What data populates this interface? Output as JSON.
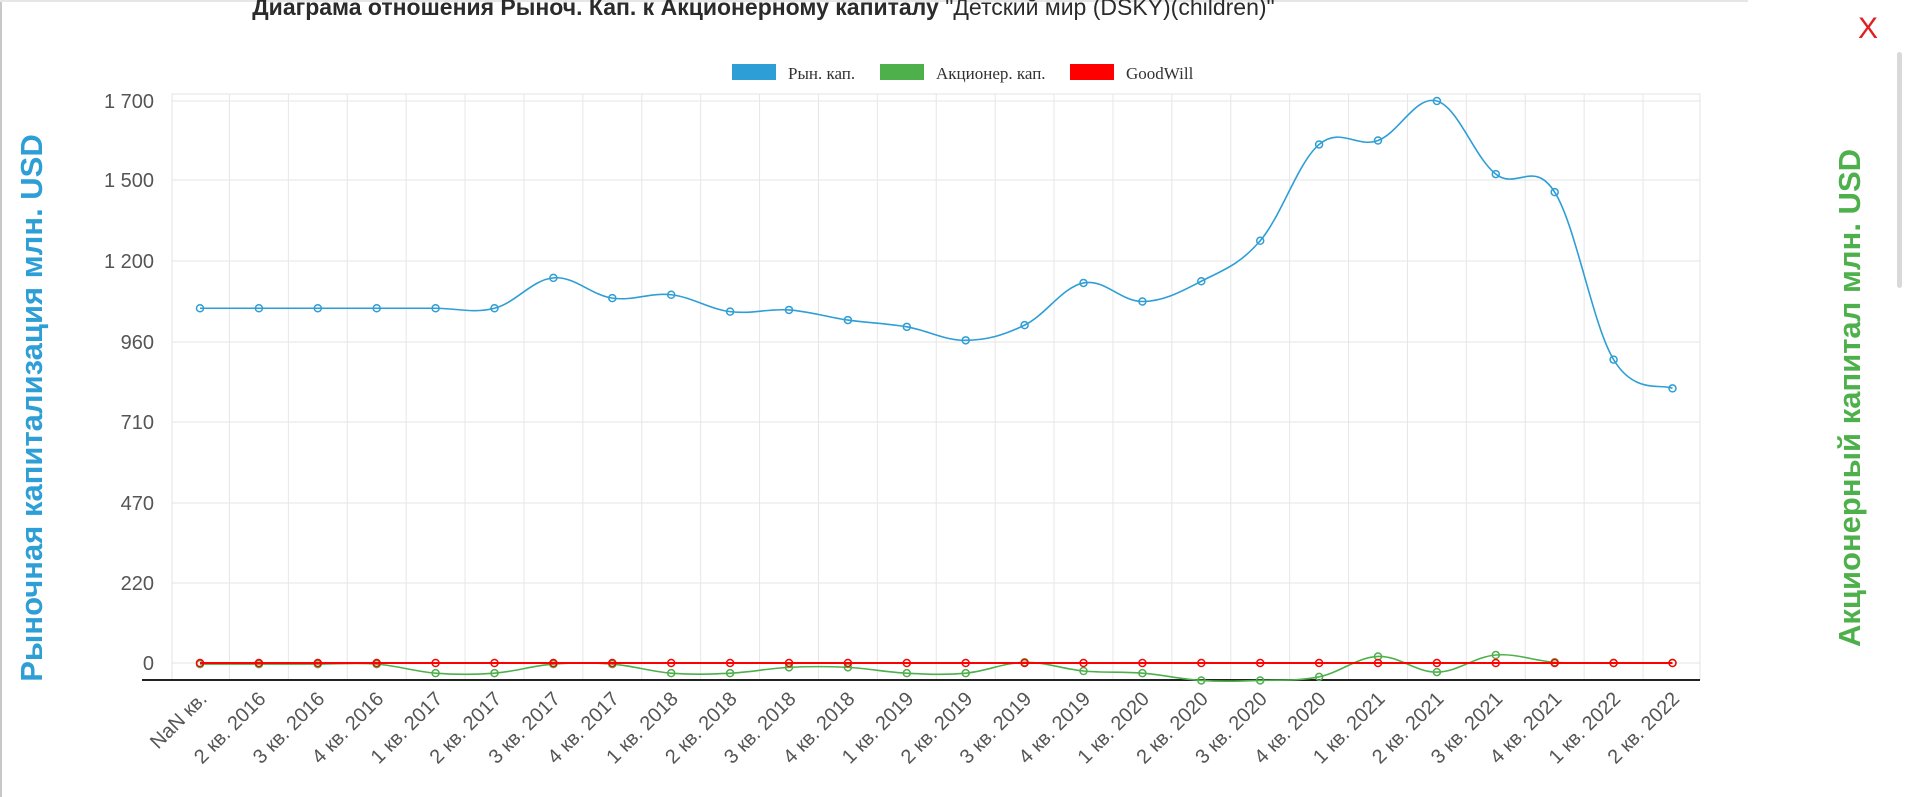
{
  "header": {
    "title_bold": "Диаграма отношения Рыноч. Кап. к Акционерному капиталу",
    "title_normal": "\"Детский мир (DSKY)(children)\"",
    "close_label": "X"
  },
  "colors": {
    "market_cap": "#2e9ed6",
    "equity": "#4db04b",
    "goodwill": "#ff0000"
  },
  "chart_data": {
    "type": "line",
    "title": "Диаграма отношения Рыноч. Кап. к Акционерному капиталу \"Детский мир (DSKY)(children)\"",
    "ylabel_left": "Рыночная капитализация млн. USD",
    "ylabel_right": "Акционерный капитал млн. USD",
    "legend_position": "top-center",
    "grid": true,
    "categories": [
      "NaN кв.",
      "2 кв. 2016",
      "3 кв. 2016",
      "4 кв. 2016",
      "1 кв. 2017",
      "2 кв. 2017",
      "3 кв. 2017",
      "4 кв. 2017",
      "1 кв. 2018",
      "2 кв. 2018",
      "3 кв. 2018",
      "4 кв. 2018",
      "1 кв. 2019",
      "2 кв. 2019",
      "3 кв. 2019",
      "4 кв. 2019",
      "1 кв. 2020",
      "2 кв. 2020",
      "3 кв. 2020",
      "4 кв. 2020",
      "1 кв. 2021",
      "2 кв. 2021",
      "3 кв. 2021",
      "4 кв. 2021",
      "1 кв. 2022",
      "2 кв. 2022"
    ],
    "yticks": [
      "0",
      "220",
      "470",
      "710",
      "960",
      "1 200",
      "1 500",
      "1 700"
    ],
    "ylim": [
      -50,
      1700
    ],
    "series": [
      {
        "name": "Рын. кап.",
        "color": "#2e9ed6",
        "values": [
          1060,
          1060,
          1060,
          1060,
          1060,
          1060,
          1150,
          1090,
          1100,
          1050,
          1055,
          1025,
          1005,
          965,
          1010,
          1135,
          1080,
          1140,
          1275,
          1590,
          1600,
          1700,
          1515,
          1455,
          905,
          815
        ]
      },
      {
        "name": "Акционер. кап.",
        "color": "#4db04b",
        "values": [
          -3,
          -3,
          -3,
          -3,
          -28,
          -28,
          -3,
          -3,
          -28,
          -28,
          -12,
          -12,
          -28,
          -28,
          2,
          -22,
          -28,
          -48,
          -48,
          -38,
          18,
          -25,
          22,
          2,
          0,
          0
        ]
      },
      {
        "name": "GoodWill",
        "color": "#ff0000",
        "values": [
          0,
          0,
          0,
          0,
          0,
          0,
          0,
          0,
          0,
          0,
          0,
          0,
          0,
          0,
          0,
          0,
          0,
          0,
          0,
          0,
          0,
          0,
          0,
          0,
          0,
          0
        ]
      }
    ]
  }
}
